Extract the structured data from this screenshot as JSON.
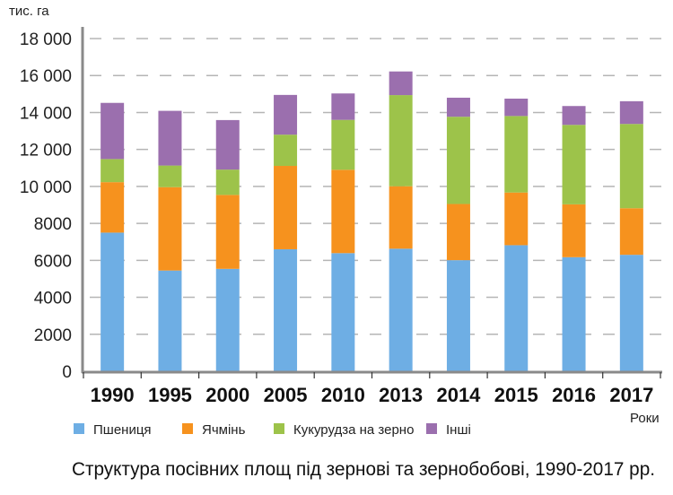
{
  "chart_data": {
    "type": "bar",
    "stacked": true,
    "title": "Структура посівних площ під зернові та зернобобові, 1990-2017 рр.",
    "ylabel": "тис. га",
    "xlabel": "Роки",
    "ylim": [
      0,
      18000
    ],
    "yticks": [
      0,
      2000,
      4000,
      6000,
      8000,
      10000,
      12000,
      14000,
      16000,
      18000
    ],
    "ytick_labels": [
      "0",
      "2000",
      "4000",
      "6000",
      "8000",
      "10 000",
      "12 000",
      "14 000",
      "16 000",
      "18 000"
    ],
    "grid": true,
    "legend_position": "bottom",
    "categories": [
      "1990",
      "1995",
      "2000",
      "2005",
      "2010",
      "2013",
      "2014",
      "2015",
      "2016",
      "2017"
    ],
    "series": [
      {
        "name": "Пшениця",
        "color": "#6eaee4",
        "values": [
          7500,
          5450,
          5540,
          6600,
          6390,
          6630,
          6010,
          6820,
          6170,
          6300
        ]
      },
      {
        "name": "Ячмінь",
        "color": "#f6921e",
        "values": [
          2730,
          4510,
          4000,
          4510,
          4510,
          3380,
          3040,
          2850,
          2860,
          2520
        ]
      },
      {
        "name": "Кукурудза на зерно",
        "color": "#9dc34a",
        "values": [
          1250,
          1170,
          1370,
          1690,
          2700,
          4930,
          4720,
          4140,
          4300,
          4560
        ]
      },
      {
        "name": "Інші",
        "color": "#9b6fae",
        "values": [
          3040,
          2960,
          2680,
          2150,
          1430,
          1280,
          1030,
          940,
          1020,
          1230
        ]
      }
    ]
  }
}
